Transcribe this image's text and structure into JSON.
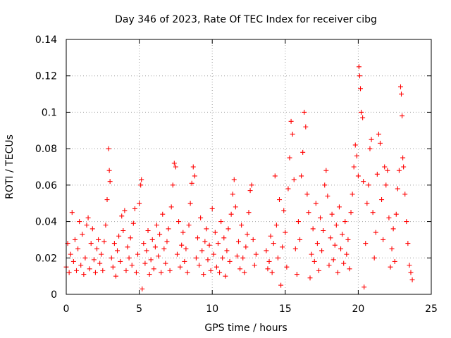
{
  "chart_data": {
    "type": "scatter",
    "title": "Day 346 of 2023, Rate Of TEC Index for receiver cibg",
    "xlabel": "GPS time / hours",
    "ylabel": "ROTI / TECUs",
    "xlim": [
      0,
      25
    ],
    "ylim": [
      0,
      0.14
    ],
    "x_ticks": [
      "0",
      "5",
      "10",
      "15",
      "20",
      "25"
    ],
    "y_ticks": [
      "0",
      "0.02",
      "0.04",
      "0.06",
      "0.08",
      "0.1",
      "0.12",
      "0.14"
    ],
    "grid": true,
    "marker": "+",
    "color": "#ff0000",
    "series": [
      {
        "points": [
          [
            0.0,
            0.015
          ],
          [
            0.1,
            0.028
          ],
          [
            0.2,
            0.012
          ],
          [
            0.3,
            0.022
          ],
          [
            0.4,
            0.045
          ],
          [
            0.5,
            0.018
          ],
          [
            0.6,
            0.03
          ],
          [
            0.7,
            0.013
          ],
          [
            0.8,
            0.025
          ],
          [
            0.9,
            0.04
          ],
          [
            1.0,
            0.016
          ],
          [
            1.1,
            0.033
          ],
          [
            1.2,
            0.011
          ],
          [
            1.3,
            0.02
          ],
          [
            1.4,
            0.038
          ],
          [
            1.5,
            0.042
          ],
          [
            1.6,
            0.014
          ],
          [
            1.7,
            0.028
          ],
          [
            1.8,
            0.036
          ],
          [
            1.9,
            0.019
          ],
          [
            2.0,
            0.012
          ],
          [
            2.1,
            0.025
          ],
          [
            2.2,
            0.03
          ],
          [
            2.3,
            0.017
          ],
          [
            2.4,
            0.022
          ],
          [
            2.5,
            0.013
          ],
          [
            2.6,
            0.029
          ],
          [
            2.7,
            0.038
          ],
          [
            2.8,
            0.052
          ],
          [
            2.9,
            0.08
          ],
          [
            2.95,
            0.068
          ],
          [
            3.0,
            0.062
          ],
          [
            3.1,
            0.02
          ],
          [
            3.2,
            0.015
          ],
          [
            3.3,
            0.028
          ],
          [
            3.4,
            0.01
          ],
          [
            3.5,
            0.024
          ],
          [
            3.6,
            0.032
          ],
          [
            3.7,
            0.018
          ],
          [
            3.8,
            0.043
          ],
          [
            3.9,
            0.035
          ],
          [
            4.0,
            0.046
          ],
          [
            4.1,
            0.013
          ],
          [
            4.2,
            0.026
          ],
          [
            4.3,
            0.02
          ],
          [
            4.4,
            0.031
          ],
          [
            4.5,
            0.016
          ],
          [
            4.6,
            0.039
          ],
          [
            4.7,
            0.047
          ],
          [
            4.8,
            0.012
          ],
          [
            4.9,
            0.022
          ],
          [
            5.0,
            0.05
          ],
          [
            5.1,
            0.06
          ],
          [
            5.15,
            0.063
          ],
          [
            5.2,
            0.003
          ],
          [
            5.3,
            0.028
          ],
          [
            5.4,
            0.017
          ],
          [
            5.5,
            0.024
          ],
          [
            5.6,
            0.035
          ],
          [
            5.7,
            0.011
          ],
          [
            5.8,
            0.019
          ],
          [
            5.9,
            0.03
          ],
          [
            6.0,
            0.014
          ],
          [
            6.1,
            0.026
          ],
          [
            6.2,
            0.038
          ],
          [
            6.3,
            0.021
          ],
          [
            6.4,
            0.033
          ],
          [
            6.5,
            0.012
          ],
          [
            6.6,
            0.044
          ],
          [
            6.7,
            0.025
          ],
          [
            6.8,
            0.017
          ],
          [
            6.9,
            0.029
          ],
          [
            7.0,
            0.036
          ],
          [
            7.1,
            0.013
          ],
          [
            7.2,
            0.048
          ],
          [
            7.3,
            0.06
          ],
          [
            7.4,
            0.072
          ],
          [
            7.5,
            0.07
          ],
          [
            7.6,
            0.022
          ],
          [
            7.7,
            0.04
          ],
          [
            7.8,
            0.015
          ],
          [
            7.9,
            0.027
          ],
          [
            8.0,
            0.034
          ],
          [
            8.1,
            0.018
          ],
          [
            8.2,
            0.025
          ],
          [
            8.3,
            0.012
          ],
          [
            8.4,
            0.038
          ],
          [
            8.5,
            0.05
          ],
          [
            8.6,
            0.061
          ],
          [
            8.7,
            0.07
          ],
          [
            8.8,
            0.065
          ],
          [
            8.9,
            0.02
          ],
          [
            9.0,
            0.031
          ],
          [
            9.1,
            0.016
          ],
          [
            9.2,
            0.042
          ],
          [
            9.3,
            0.024
          ],
          [
            9.4,
            0.011
          ],
          [
            9.5,
            0.029
          ],
          [
            9.6,
            0.036
          ],
          [
            9.7,
            0.019
          ],
          [
            9.8,
            0.027
          ],
          [
            9.9,
            0.013
          ],
          [
            10.0,
            0.047
          ],
          [
            10.1,
            0.022
          ],
          [
            10.2,
            0.034
          ],
          [
            10.3,
            0.015
          ],
          [
            10.4,
            0.028
          ],
          [
            10.5,
            0.012
          ],
          [
            10.6,
            0.04
          ],
          [
            10.7,
            0.02
          ],
          [
            10.8,
            0.031
          ],
          [
            10.9,
            0.01
          ],
          [
            11.0,
            0.024
          ],
          [
            11.1,
            0.036
          ],
          [
            11.2,
            0.018
          ],
          [
            11.3,
            0.044
          ],
          [
            11.4,
            0.055
          ],
          [
            11.5,
            0.063
          ],
          [
            11.6,
            0.048
          ],
          [
            11.7,
            0.021
          ],
          [
            11.8,
            0.029
          ],
          [
            11.9,
            0.014
          ],
          [
            12.0,
            0.038
          ],
          [
            12.1,
            0.02
          ],
          [
            12.2,
            0.012
          ],
          [
            12.3,
            0.026
          ],
          [
            12.4,
            0.033
          ],
          [
            12.5,
            0.045
          ],
          [
            12.6,
            0.057
          ],
          [
            12.7,
            0.06
          ],
          [
            12.8,
            0.03
          ],
          [
            12.9,
            0.016
          ],
          [
            13.0,
            0.022
          ],
          [
            13.7,
            0.024
          ],
          [
            13.8,
            0.014
          ],
          [
            13.9,
            0.018
          ],
          [
            14.0,
            0.032
          ],
          [
            14.1,
            0.012
          ],
          [
            14.2,
            0.028
          ],
          [
            14.3,
            0.065
          ],
          [
            14.4,
            0.038
          ],
          [
            14.5,
            0.02
          ],
          [
            14.6,
            0.052
          ],
          [
            14.7,
            0.005
          ],
          [
            14.8,
            0.026
          ],
          [
            14.9,
            0.046
          ],
          [
            15.0,
            0.034
          ],
          [
            15.1,
            0.015
          ],
          [
            15.2,
            0.058
          ],
          [
            15.3,
            0.075
          ],
          [
            15.4,
            0.095
          ],
          [
            15.5,
            0.088
          ],
          [
            15.6,
            0.063
          ],
          [
            15.7,
            0.025
          ],
          [
            15.8,
            0.011
          ],
          [
            15.9,
            0.04
          ],
          [
            16.0,
            0.03
          ],
          [
            16.1,
            0.065
          ],
          [
            16.2,
            0.078
          ],
          [
            16.3,
            0.1
          ],
          [
            16.4,
            0.092
          ],
          [
            16.5,
            0.055
          ],
          [
            16.6,
            0.045
          ],
          [
            16.7,
            0.009
          ],
          [
            16.8,
            0.022
          ],
          [
            16.9,
            0.036
          ],
          [
            17.0,
            0.018
          ],
          [
            17.1,
            0.05
          ],
          [
            17.2,
            0.028
          ],
          [
            17.3,
            0.013
          ],
          [
            17.4,
            0.042
          ],
          [
            17.5,
            0.024
          ],
          [
            17.6,
            0.035
          ],
          [
            17.7,
            0.06
          ],
          [
            17.8,
            0.068
          ],
          [
            17.9,
            0.054
          ],
          [
            18.0,
            0.016
          ],
          [
            18.1,
            0.031
          ],
          [
            18.2,
            0.044
          ],
          [
            18.3,
            0.019
          ],
          [
            18.4,
            0.027
          ],
          [
            18.5,
            0.038
          ],
          [
            18.6,
            0.012
          ],
          [
            18.7,
            0.048
          ],
          [
            18.8,
            0.025
          ],
          [
            18.9,
            0.033
          ],
          [
            19.0,
            0.017
          ],
          [
            19.1,
            0.04
          ],
          [
            19.2,
            0.022
          ],
          [
            19.3,
            0.03
          ],
          [
            19.4,
            0.014
          ],
          [
            19.5,
            0.045
          ],
          [
            19.6,
            0.055
          ],
          [
            19.7,
            0.07
          ],
          [
            19.8,
            0.082
          ],
          [
            19.9,
            0.076
          ],
          [
            20.0,
            0.065
          ],
          [
            20.05,
            0.125
          ],
          [
            20.1,
            0.12
          ],
          [
            20.15,
            0.113
          ],
          [
            20.2,
            0.1
          ],
          [
            20.3,
            0.097
          ],
          [
            20.35,
            0.062
          ],
          [
            20.4,
            0.004
          ],
          [
            20.5,
            0.028
          ],
          [
            20.6,
            0.05
          ],
          [
            20.7,
            0.06
          ],
          [
            20.8,
            0.08
          ],
          [
            20.9,
            0.085
          ],
          [
            21.0,
            0.045
          ],
          [
            21.1,
            0.02
          ],
          [
            21.2,
            0.034
          ],
          [
            21.3,
            0.066
          ],
          [
            21.4,
            0.088
          ],
          [
            21.5,
            0.083
          ],
          [
            21.6,
            0.052
          ],
          [
            21.7,
            0.03
          ],
          [
            21.8,
            0.07
          ],
          [
            21.9,
            0.06
          ],
          [
            22.0,
            0.068
          ],
          [
            22.1,
            0.042
          ],
          [
            22.2,
            0.015
          ],
          [
            22.3,
            0.025
          ],
          [
            22.4,
            0.036
          ],
          [
            22.5,
            0.018
          ],
          [
            22.6,
            0.044
          ],
          [
            22.7,
            0.058
          ],
          [
            22.8,
            0.068
          ],
          [
            22.9,
            0.114
          ],
          [
            22.95,
            0.11
          ],
          [
            23.0,
            0.098
          ],
          [
            23.05,
            0.075
          ],
          [
            23.1,
            0.07
          ],
          [
            23.2,
            0.055
          ],
          [
            23.3,
            0.04
          ],
          [
            23.4,
            0.028
          ],
          [
            23.5,
            0.016
          ],
          [
            23.6,
            0.012
          ],
          [
            23.7,
            0.008
          ]
        ]
      }
    ]
  }
}
